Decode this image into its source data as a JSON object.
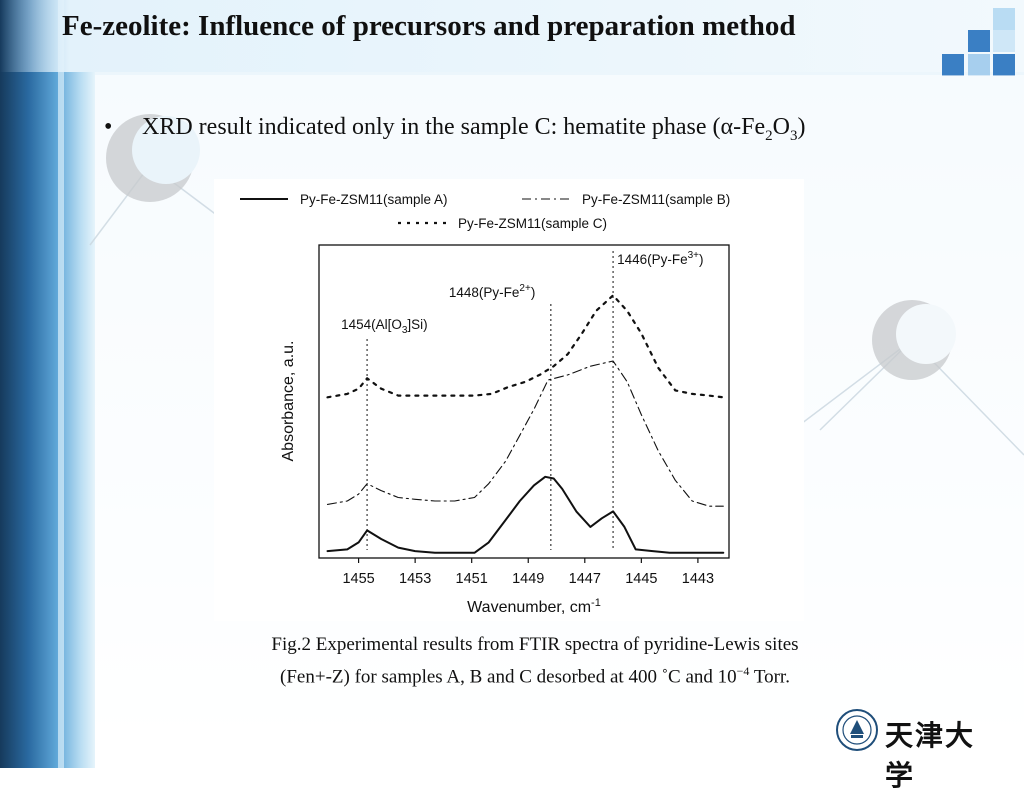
{
  "slide": {
    "title": "Fe-zeolite: Influence of precursors and preparation  method",
    "bullet": {
      "marker": "•",
      "text_main": "XRD result indicated only in the sample C: hematite phase (α-Fe",
      "sub1": "2",
      "mid": "O",
      "sub2": "3",
      "close": ")"
    },
    "caption_line1": "Fig.2 Experimental results from FTIR spectra of pyridine-Lewis sites",
    "caption_line2": "(Fen+-Z) for samples A, B and C desorbed at 400 ˚C and 10",
    "caption_exp": "−4",
    "caption_end": " Torr.",
    "logo_text": "天津大学"
  },
  "colors": {
    "accent_blue": "#3a7fc4",
    "light_blue": "#9cc9ea",
    "text": "#111111"
  },
  "chart_data": {
    "type": "line",
    "xlabel": "Wavenumber, cm",
    "xlabel_exp": "-1",
    "ylabel": "Absorbance, a.u.",
    "xlim": [
      1456.4,
      1441.9
    ],
    "x_reversed": true,
    "x_ticks": [
      1455,
      1453,
      1451,
      1449,
      1447,
      1445,
      1443
    ],
    "legend": [
      {
        "name": "Py-Fe-ZSM11(sample A)",
        "style": "solid"
      },
      {
        "name": "Py-Fe-ZSM11(sample B)",
        "style": "dash-dot"
      },
      {
        "name": "Py-Fe-ZSM11(sample C)",
        "style": "dotted"
      }
    ],
    "annotations": [
      {
        "text": "1454(Al[O",
        "sub": "3",
        "text2": "]Si)",
        "x": 1454.7
      },
      {
        "text": "1448(Py-Fe",
        "sup": "2+",
        "text2": ")",
        "x": 1448.2
      },
      {
        "text": "1446(Py-Fe",
        "sup": "3+",
        "text2": ")",
        "x": 1446.0
      }
    ],
    "series": [
      {
        "name": "Py-Fe-ZSM11(sample A)",
        "style": "solid",
        "x": [
          1456.1,
          1455.4,
          1455.0,
          1454.7,
          1454.2,
          1453.6,
          1453.0,
          1452.3,
          1451.6,
          1450.9,
          1450.4,
          1449.8,
          1449.3,
          1448.8,
          1448.4,
          1448.1,
          1447.8,
          1447.3,
          1446.8,
          1446.4,
          1446.0,
          1445.6,
          1445.2,
          1444.6,
          1444.0,
          1443.2,
          1442.4,
          1442.1
        ],
        "y": [
          0.04,
          0.05,
          0.09,
          0.16,
          0.11,
          0.06,
          0.04,
          0.03,
          0.03,
          0.03,
          0.09,
          0.22,
          0.33,
          0.42,
          0.47,
          0.46,
          0.4,
          0.27,
          0.18,
          0.23,
          0.27,
          0.18,
          0.05,
          0.04,
          0.03,
          0.03,
          0.03,
          0.03
        ]
      },
      {
        "name": "Py-Fe-ZSM11(sample B)",
        "style": "dash-dot",
        "x": [
          1456.1,
          1455.4,
          1455.0,
          1454.7,
          1454.2,
          1453.6,
          1453.0,
          1452.3,
          1451.6,
          1450.9,
          1450.4,
          1449.8,
          1449.3,
          1448.8,
          1448.3,
          1447.6,
          1446.8,
          1446.0,
          1445.5,
          1445.0,
          1444.4,
          1443.8,
          1443.2,
          1442.6,
          1442.1
        ],
        "y": [
          0.31,
          0.33,
          0.37,
          0.43,
          0.39,
          0.35,
          0.34,
          0.33,
          0.33,
          0.35,
          0.43,
          0.56,
          0.71,
          0.86,
          1.03,
          1.06,
          1.11,
          1.14,
          1.02,
          0.83,
          0.62,
          0.45,
          0.33,
          0.3,
          0.3
        ]
      },
      {
        "name": "Py-Fe-ZSM11(sample C)",
        "style": "dotted",
        "x": [
          1456.1,
          1455.4,
          1455.0,
          1454.7,
          1454.2,
          1453.6,
          1453.0,
          1452.3,
          1451.6,
          1450.9,
          1450.3,
          1449.7,
          1449.1,
          1448.6,
          1448.1,
          1447.6,
          1447.1,
          1446.6,
          1446.0,
          1445.5,
          1445.0,
          1444.4,
          1443.8,
          1443.2,
          1442.6,
          1442.1
        ],
        "y": [
          0.93,
          0.95,
          0.98,
          1.04,
          0.98,
          0.94,
          0.94,
          0.94,
          0.94,
          0.94,
          0.95,
          0.99,
          1.02,
          1.06,
          1.11,
          1.18,
          1.3,
          1.43,
          1.52,
          1.43,
          1.3,
          1.1,
          0.97,
          0.95,
          0.94,
          0.93
        ]
      }
    ]
  }
}
